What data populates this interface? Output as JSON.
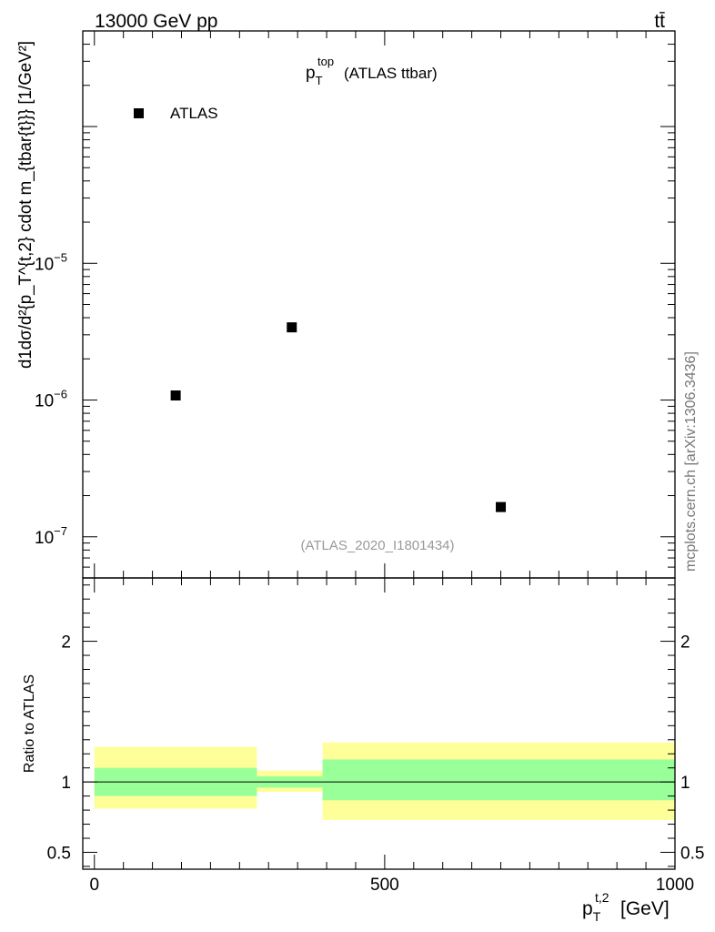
{
  "header": {
    "energy_label": "13000 GeV pp",
    "process_label": "tt̄"
  },
  "side_label": "mcplots.cern.ch [arXiv:1306.3436]",
  "chart_data": [
    {
      "type": "scatter",
      "title_main": "p",
      "title_sup": "top",
      "title_sub": "T",
      "title_rest": "(ATLAS ttbar)",
      "analysis_label": "(ATLAS_2020_I1801434)",
      "y_scale": "log",
      "ylim": [
        5e-08,
        0.0005
      ],
      "xlim": [
        -20,
        1000
      ],
      "y_ticks": [
        {
          "exp": "−7",
          "value": 1e-07
        },
        {
          "exp": "−6",
          "value": 1e-06
        },
        {
          "exp": "−5",
          "value": 1e-05
        }
      ],
      "ylabel": "d1dσ/d²{p_T^{t,2} cdot m_{tbar{t}}} [1/GeV²]",
      "legend": {
        "position": "top-left",
        "entries": [
          "ATLAS"
        ]
      },
      "series": [
        {
          "name": "ATLAS",
          "marker": "square",
          "color": "#000000",
          "points": [
            {
              "x": 140,
              "y": 1.08e-06
            },
            {
              "x": 340,
              "y": 3.4e-06
            },
            {
              "x": 700,
              "y": 1.65e-07
            }
          ]
        }
      ]
    },
    {
      "type": "area",
      "ylabel": "Ratio to ATLAS",
      "ylim": [
        0.38,
        2.45
      ],
      "xlim": [
        -20,
        1000
      ],
      "y_ticks": [
        {
          "label": "0.5",
          "value": 0.5
        },
        {
          "label": "1",
          "value": 1
        },
        {
          "label": "2",
          "value": 2
        }
      ],
      "x_ticks": [
        {
          "label": "0",
          "value": 0
        },
        {
          "label": "500",
          "value": 500
        },
        {
          "label": "1000",
          "value": 1000
        }
      ],
      "xlabel_main": "p",
      "xlabel_sup": "t,2",
      "xlabel_sub": "T",
      "xlabel_unit": "[GeV]",
      "reference_line": 1,
      "colors": {
        "inner_band": "#99ff99",
        "outer_band": "#ffff99"
      },
      "bands": [
        {
          "x0": 0,
          "x1": 280,
          "inner": [
            0.9,
            1.1
          ],
          "outer": [
            0.81,
            1.25
          ]
        },
        {
          "x0": 280,
          "x1": 393,
          "inner": [
            0.96,
            1.04
          ],
          "outer": [
            0.93,
            1.08
          ]
        },
        {
          "x0": 393,
          "x1": 1000,
          "inner": [
            0.87,
            1.16
          ],
          "outer": [
            0.73,
            1.28
          ]
        }
      ]
    }
  ]
}
